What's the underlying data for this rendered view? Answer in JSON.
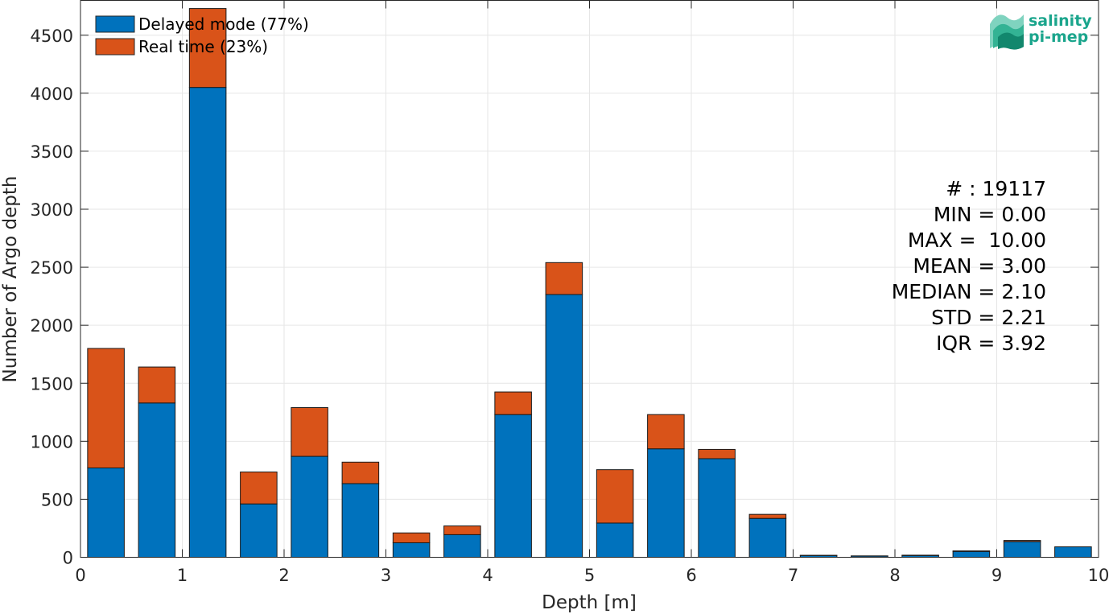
{
  "chart_data": {
    "type": "bar",
    "stacked": true,
    "xlabel": "Depth [m]",
    "ylabel": "Number of Argo depth",
    "xlim": [
      0,
      10
    ],
    "ylim": [
      0,
      4800
    ],
    "x_ticks": [
      "0",
      "1",
      "2",
      "3",
      "4",
      "5",
      "6",
      "7",
      "8",
      "9",
      "10"
    ],
    "y_ticks": [
      "0",
      "500",
      "1000",
      "1500",
      "2000",
      "2500",
      "3000",
      "3500",
      "4000",
      "4500"
    ],
    "grid": true,
    "legend_position": "top-left",
    "bin_width": 0.5,
    "bin_centers": [
      0.25,
      0.75,
      1.25,
      1.75,
      2.25,
      2.75,
      3.25,
      3.75,
      4.25,
      4.75,
      5.25,
      5.75,
      6.25,
      6.75,
      7.25,
      7.75,
      8.25,
      8.75,
      9.25,
      9.75
    ],
    "series": [
      {
        "name": "Delayed mode (77%)",
        "color": "#0072BD",
        "values": [
          770,
          1330,
          4050,
          460,
          870,
          635,
          125,
          195,
          1230,
          2265,
          295,
          935,
          850,
          335,
          15,
          10,
          15,
          50,
          135,
          90
        ]
      },
      {
        "name": "Real time (23%)",
        "color": "#D95319",
        "values": [
          1030,
          310,
          680,
          275,
          420,
          185,
          85,
          75,
          195,
          275,
          460,
          295,
          80,
          35,
          2,
          2,
          3,
          5,
          10,
          0
        ]
      }
    ],
    "stats": [
      "# : 19117",
      "MIN = 0.00",
      "MAX =  10.00",
      "MEAN = 3.00",
      "MEDIAN = 2.10",
      "STD = 2.21",
      "IQR = 3.92"
    ]
  },
  "logo": {
    "line1": "salinity",
    "line2": "pi-mep"
  }
}
